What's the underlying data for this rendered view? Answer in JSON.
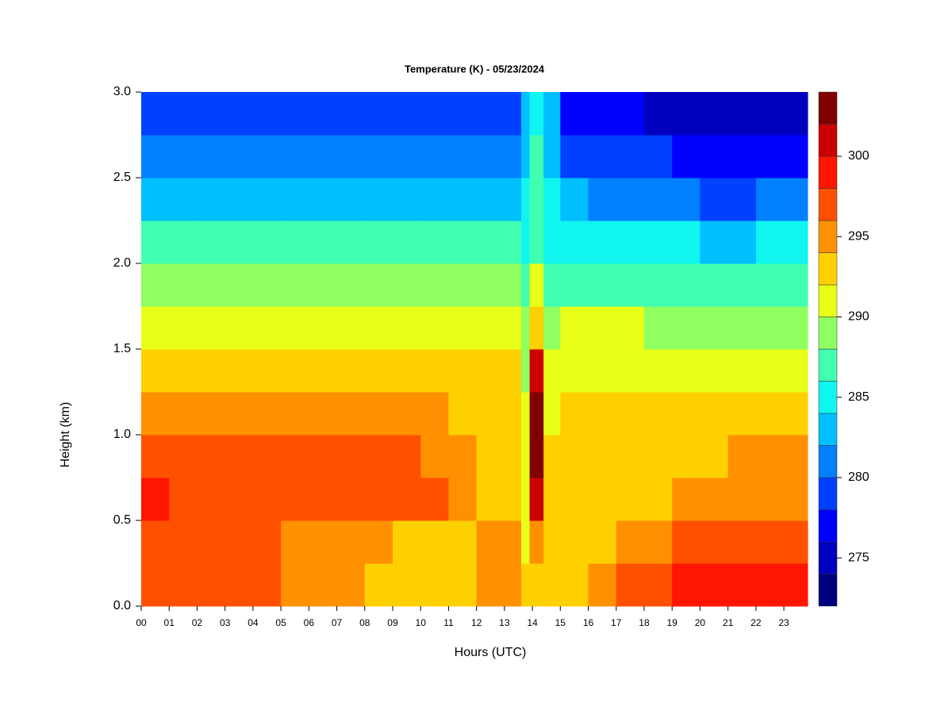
{
  "chart_data": {
    "type": "heatmap",
    "title": "Temperature (K) - 05/23/2024",
    "x_label": "Hours (UTC)",
    "y_label": "Height (km)",
    "x": [
      0,
      1,
      2,
      3,
      4,
      5,
      6,
      7,
      8,
      9,
      10,
      11,
      12,
      13,
      13.6,
      13.9,
      14.4,
      15,
      16,
      17,
      18,
      19,
      20,
      21,
      22,
      23
    ],
    "y": [
      0,
      0.25,
      0.5,
      0.75,
      1,
      1.25,
      1.5,
      1.75,
      2,
      2.25,
      2.5,
      2.75
    ],
    "z": [
      [
        297,
        297,
        296,
        296,
        296,
        295,
        295,
        294,
        293,
        293,
        293,
        293,
        294,
        295,
        292,
        293,
        293,
        293,
        294,
        296,
        297,
        298,
        299,
        298,
        298,
        298
      ],
      [
        297,
        297,
        297,
        297,
        296,
        295,
        295,
        295,
        294,
        293,
        293,
        293,
        294,
        294,
        291,
        294,
        292,
        293,
        293,
        294,
        295,
        296,
        296,
        296,
        296,
        296
      ],
      [
        298,
        297,
        297,
        297,
        297,
        297,
        297,
        297,
        297,
        297,
        296,
        295,
        293,
        293,
        291,
        300,
        292,
        293,
        293,
        293,
        293,
        294,
        294,
        295,
        295,
        295
      ],
      [
        297,
        297,
        297,
        297,
        297,
        297,
        297,
        297,
        297,
        296,
        295,
        294,
        293,
        293,
        291,
        302,
        292,
        293,
        293,
        293,
        293,
        293,
        293,
        294,
        294,
        294
      ],
      [
        295,
        295,
        295,
        295,
        295,
        295,
        295,
        295,
        295,
        295,
        294,
        293,
        293,
        292,
        290,
        302,
        291,
        292,
        292,
        292,
        292,
        292,
        292,
        293,
        293,
        293
      ],
      [
        293,
        293,
        293,
        293,
        293,
        293,
        293,
        293,
        293,
        293,
        293,
        292,
        292,
        292,
        289,
        301,
        290,
        291,
        291,
        291,
        291,
        291,
        291,
        291,
        291,
        291
      ],
      [
        291,
        291,
        291,
        291,
        291,
        291,
        291,
        291,
        291,
        291,
        291,
        290,
        290,
        290,
        288,
        293,
        288,
        290,
        290,
        290,
        289,
        289,
        289,
        289,
        289,
        289
      ],
      [
        289,
        289,
        289,
        289,
        289,
        289,
        289,
        289,
        289,
        289,
        289,
        289,
        288,
        288,
        286,
        290,
        287,
        287,
        287,
        287,
        287,
        287,
        287,
        287,
        287,
        287
      ],
      [
        286,
        286,
        286,
        286,
        286,
        286,
        286,
        286,
        286,
        286,
        286,
        286,
        286,
        286,
        285,
        287,
        285,
        285,
        285,
        284,
        284,
        284,
        283,
        283,
        284,
        284
      ],
      [
        283,
        283,
        283,
        283,
        283,
        283,
        283,
        283,
        283,
        283,
        283,
        283,
        283,
        283,
        284,
        286,
        284,
        282,
        281,
        281,
        280,
        280,
        279,
        279,
        280,
        280
      ],
      [
        281,
        281,
        281,
        281,
        281,
        281,
        281,
        281,
        281,
        281,
        281,
        281,
        281,
        281,
        283,
        286,
        283,
        279,
        279,
        278,
        278,
        277,
        277,
        277,
        277,
        277
      ],
      [
        278,
        278,
        278,
        278,
        278,
        278,
        278,
        278,
        278,
        278,
        278,
        278,
        278,
        278,
        283,
        285,
        283,
        277,
        276,
        276,
        275,
        275,
        275,
        274,
        274,
        275
      ]
    ],
    "xlim": [
      0,
      23.85
    ],
    "ylim": [
      0,
      3
    ],
    "xticks": [
      {
        "value": 0,
        "label": "00"
      },
      {
        "value": 1,
        "label": "01"
      },
      {
        "value": 2,
        "label": "02"
      },
      {
        "value": 3,
        "label": "03"
      },
      {
        "value": 4,
        "label": "04"
      },
      {
        "value": 5,
        "label": "05"
      },
      {
        "value": 6,
        "label": "06"
      },
      {
        "value": 7,
        "label": "07"
      },
      {
        "value": 8,
        "label": "08"
      },
      {
        "value": 9,
        "label": "09"
      },
      10,
      11,
      12,
      13,
      14,
      15,
      16,
      17,
      18,
      19,
      20,
      21,
      22,
      23
    ],
    "yticks": [
      {
        "value": 0,
        "label": "0.0"
      },
      {
        "value": 0.5,
        "label": "0.5"
      },
      {
        "value": 1,
        "label": "1.0"
      },
      {
        "value": 1.5,
        "label": "1.5"
      },
      {
        "value": 2,
        "label": "2.0"
      },
      {
        "value": 2.5,
        "label": "2.5"
      },
      {
        "value": 3,
        "label": "3.0"
      }
    ],
    "levels": [
      272,
      274,
      276,
      278,
      280,
      282,
      284,
      286,
      288,
      290,
      292,
      294,
      296,
      298,
      300,
      302,
      304
    ],
    "colors": [
      "#00007f",
      "#0000bf",
      "#0000ff",
      "#0040ff",
      "#0080ff",
      "#00bfff",
      "#10f5f0",
      "#40ffb0",
      "#90ff60",
      "#e8ff18",
      "#ffd000",
      "#ff9000",
      "#ff5000",
      "#ff1500",
      "#cc0000",
      "#800000"
    ],
    "zticks": [
      275,
      280,
      285,
      290,
      295,
      300
    ]
  }
}
